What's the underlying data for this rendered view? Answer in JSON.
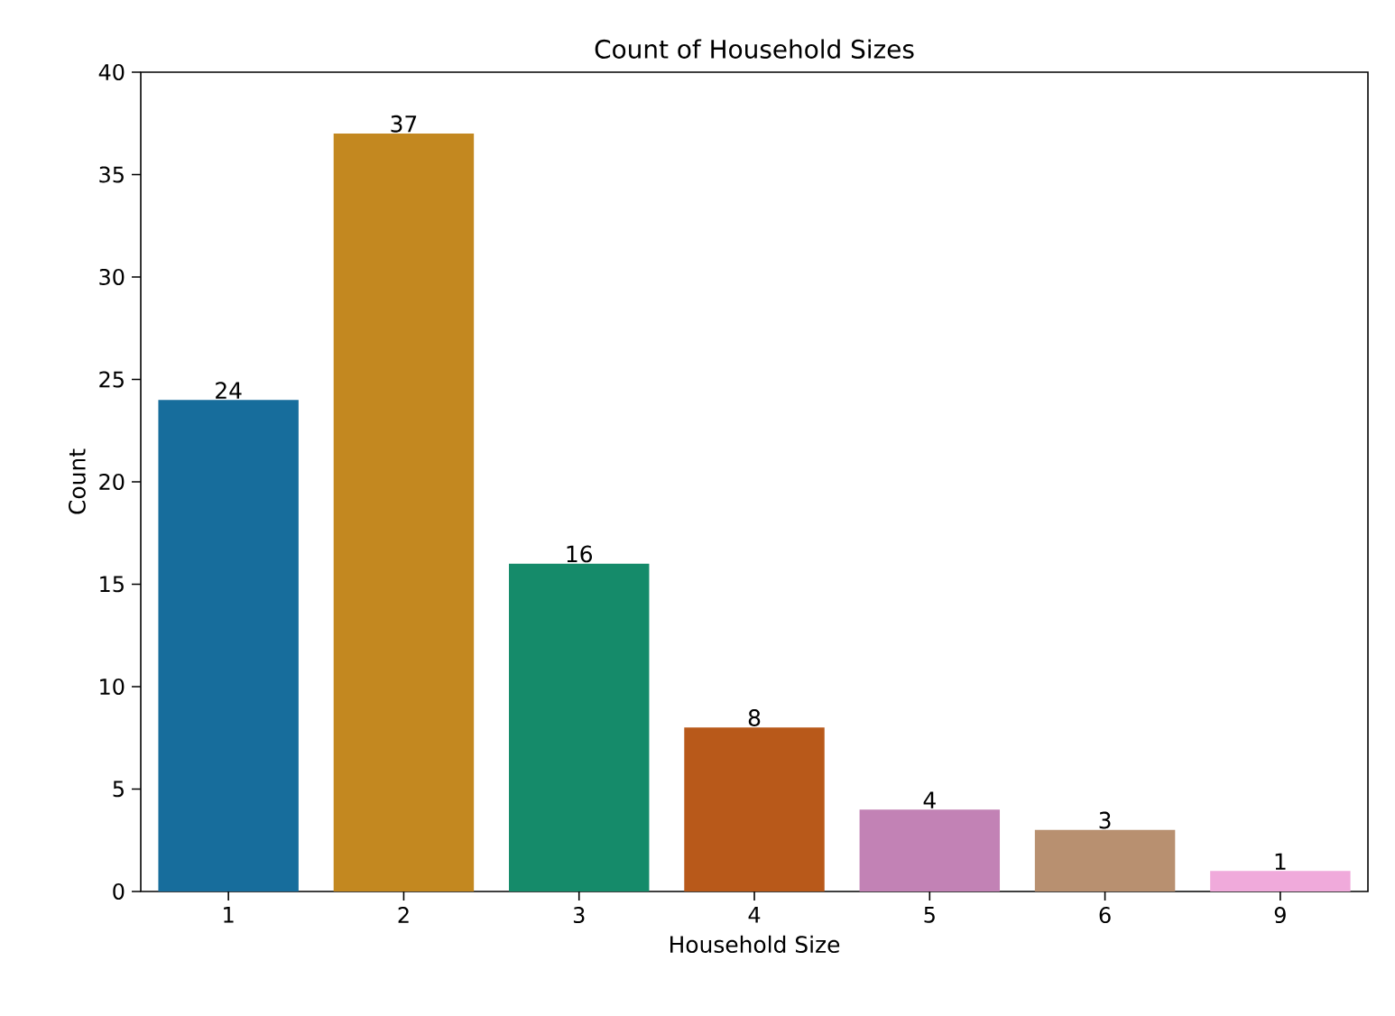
{
  "chart_data": {
    "type": "bar",
    "title": "Count of Household Sizes",
    "xlabel": "Household Size",
    "ylabel": "Count",
    "categories": [
      "1",
      "2",
      "3",
      "4",
      "5",
      "6",
      "9"
    ],
    "values": [
      24,
      37,
      16,
      8,
      4,
      3,
      1
    ],
    "colors": [
      "#176d9c",
      "#c38820",
      "#158b6a",
      "#b8591a",
      "#c282b5",
      "#b89070",
      "#f0aadb"
    ],
    "ylim": [
      0,
      40
    ],
    "yticks": [
      0,
      5,
      10,
      15,
      20,
      25,
      30,
      35,
      40
    ],
    "data_labels": true
  }
}
